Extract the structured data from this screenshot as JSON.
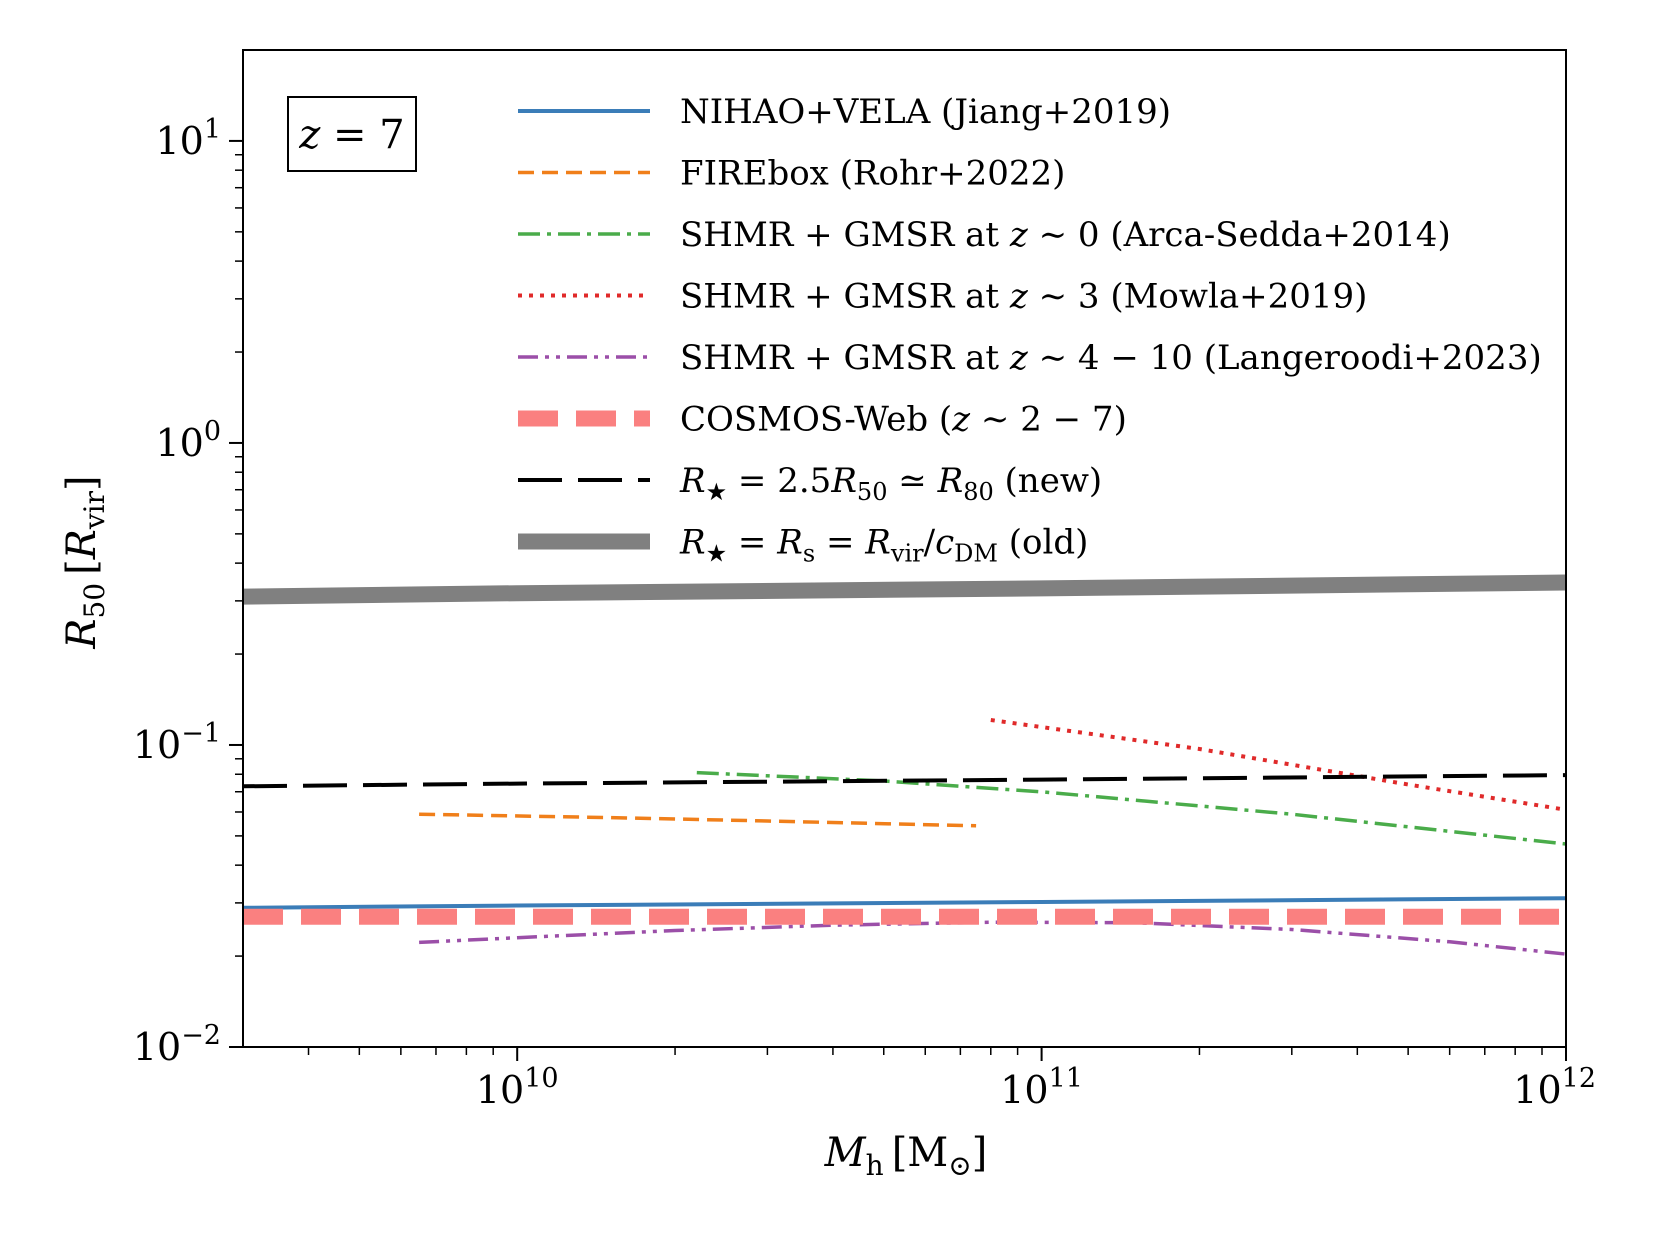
{
  "chart_data": {
    "type": "line",
    "xlabel": {
      "main": "M",
      "sub": "h",
      "unit": "[M",
      "unit_sub": "⊙",
      "unit_end": "]"
    },
    "ylabel": {
      "main": "R",
      "sub": "50",
      "unit_open": "[",
      "unit_main": "R",
      "unit_sub": "vir",
      "unit_close": "]"
    },
    "xscale": "log",
    "yscale": "log",
    "xlim": [
      3000000000.0,
      1000000000000.0
    ],
    "ylim": [
      0.01,
      20
    ],
    "x_ticks": [
      {
        "base": "10",
        "exp": "10",
        "value": 10000000000.0
      },
      {
        "base": "10",
        "exp": "11",
        "value": 100000000000.0
      },
      {
        "base": "10",
        "exp": "12",
        "value": 1000000000000.0
      }
    ],
    "y_ticks": [
      {
        "base": "10",
        "exp": "−2",
        "value": 0.01
      },
      {
        "base": "10",
        "exp": "−1",
        "value": 0.1
      },
      {
        "base": "10",
        "exp": "0",
        "value": 1
      },
      {
        "base": "10",
        "exp": "1",
        "value": 10
      }
    ],
    "annotation": {
      "var": "z",
      "eq": " = ",
      "val": "7"
    },
    "legend_position": "top-right",
    "series": [
      {
        "key": "nihao",
        "color": "#3b7db8",
        "style": "solid",
        "label": [
          {
            "t": "NIHAO+VELA (Jiang+2019)"
          }
        ],
        "x": [
          3000000000.0,
          10000000000.0,
          100000000000.0,
          1000000000000.0
        ],
        "y": [
          0.0289,
          0.0294,
          0.0302,
          0.0311
        ]
      },
      {
        "key": "firebox",
        "color": "#f07f1a",
        "style": "dashed",
        "label": [
          {
            "t": "FIREbox (Rohr+2022)"
          }
        ],
        "x": [
          6500000000.0,
          15000000000.0,
          30000000000.0,
          75000000000.0
        ],
        "y": [
          0.059,
          0.0575,
          0.056,
          0.054
        ]
      },
      {
        "key": "arca",
        "color": "#4aac4a",
        "style": "dashdot",
        "label": [
          {
            "t": "SHMR + GMSR at "
          },
          {
            "t": "z",
            "i": true
          },
          {
            "t": " ∼ 0 (Arca-Sedda+2014)"
          }
        ],
        "x": [
          22000000000.0,
          50000000000.0,
          100000000000.0,
          300000000000.0,
          1000000000000.0
        ],
        "y": [
          0.081,
          0.076,
          0.07,
          0.059,
          0.047
        ]
      },
      {
        "key": "mowla",
        "color": "#e02a2a",
        "style": "dotted",
        "label": [
          {
            "t": "SHMR + GMSR at "
          },
          {
            "t": "z",
            "i": true
          },
          {
            "t": " ∼ 3 (Mowla+2019)"
          }
        ],
        "x": [
          80000000000.0,
          200000000000.0,
          500000000000.0,
          1000000000000.0
        ],
        "y": [
          0.121,
          0.097,
          0.074,
          0.061
        ]
      },
      {
        "key": "langeroodi",
        "color": "#9b4fa8",
        "style": "dashdotdot",
        "label": [
          {
            "t": "SHMR + GMSR at "
          },
          {
            "t": "z",
            "i": true
          },
          {
            "t": " ∼ 4 − 10 (Langeroodi+2023)"
          }
        ],
        "x": [
          6500000000.0,
          10000000000.0,
          20000000000.0,
          40000000000.0,
          80000000000.0,
          150000000000.0,
          300000000000.0,
          600000000000.0,
          1000000000000.0
        ],
        "y": [
          0.0222,
          0.023,
          0.0243,
          0.0253,
          0.0259,
          0.0258,
          0.0245,
          0.0223,
          0.0203
        ]
      },
      {
        "key": "cosmos",
        "color": "#fa8080",
        "style": "thickdash",
        "label": [
          {
            "t": "COSMOS-Web ("
          },
          {
            "t": "z",
            "i": true
          },
          {
            "t": " ∼ 2 − 7)"
          }
        ],
        "x": [
          3000000000.0,
          1000000000000.0
        ],
        "y": [
          0.027,
          0.027
        ]
      },
      {
        "key": "new",
        "color": "#000000",
        "style": "longdash",
        "label": [
          {
            "t": "R",
            "i": true
          },
          {
            "t": "★",
            "sub": true
          },
          {
            "t": " = 2.5"
          },
          {
            "t": "R",
            "i": true
          },
          {
            "t": "50",
            "sub": true
          },
          {
            "t": " ≃ "
          },
          {
            "t": "R",
            "i": true
          },
          {
            "t": "80",
            "sub": true
          },
          {
            "t": " (new)"
          }
        ],
        "x": [
          3000000000.0,
          10000000000.0,
          100000000000.0,
          1000000000000.0
        ],
        "y": [
          0.073,
          0.0745,
          0.0768,
          0.0795
        ]
      },
      {
        "key": "old",
        "color": "#808080",
        "style": "thick",
        "label": [
          {
            "t": "R",
            "i": true
          },
          {
            "t": "★",
            "sub": true
          },
          {
            "t": " = "
          },
          {
            "t": "R",
            "i": true
          },
          {
            "t": "s",
            "sub": true
          },
          {
            "t": " = "
          },
          {
            "t": "R",
            "i": true
          },
          {
            "t": "vir",
            "sub": true
          },
          {
            "t": "/"
          },
          {
            "t": "c",
            "i": true
          },
          {
            "t": "DM",
            "sub": true
          },
          {
            "t": " (old)"
          }
        ],
        "x": [
          3000000000.0,
          10000000000.0,
          100000000000.0,
          1000000000000.0
        ],
        "y": [
          0.31,
          0.318,
          0.33,
          0.345
        ]
      }
    ]
  }
}
